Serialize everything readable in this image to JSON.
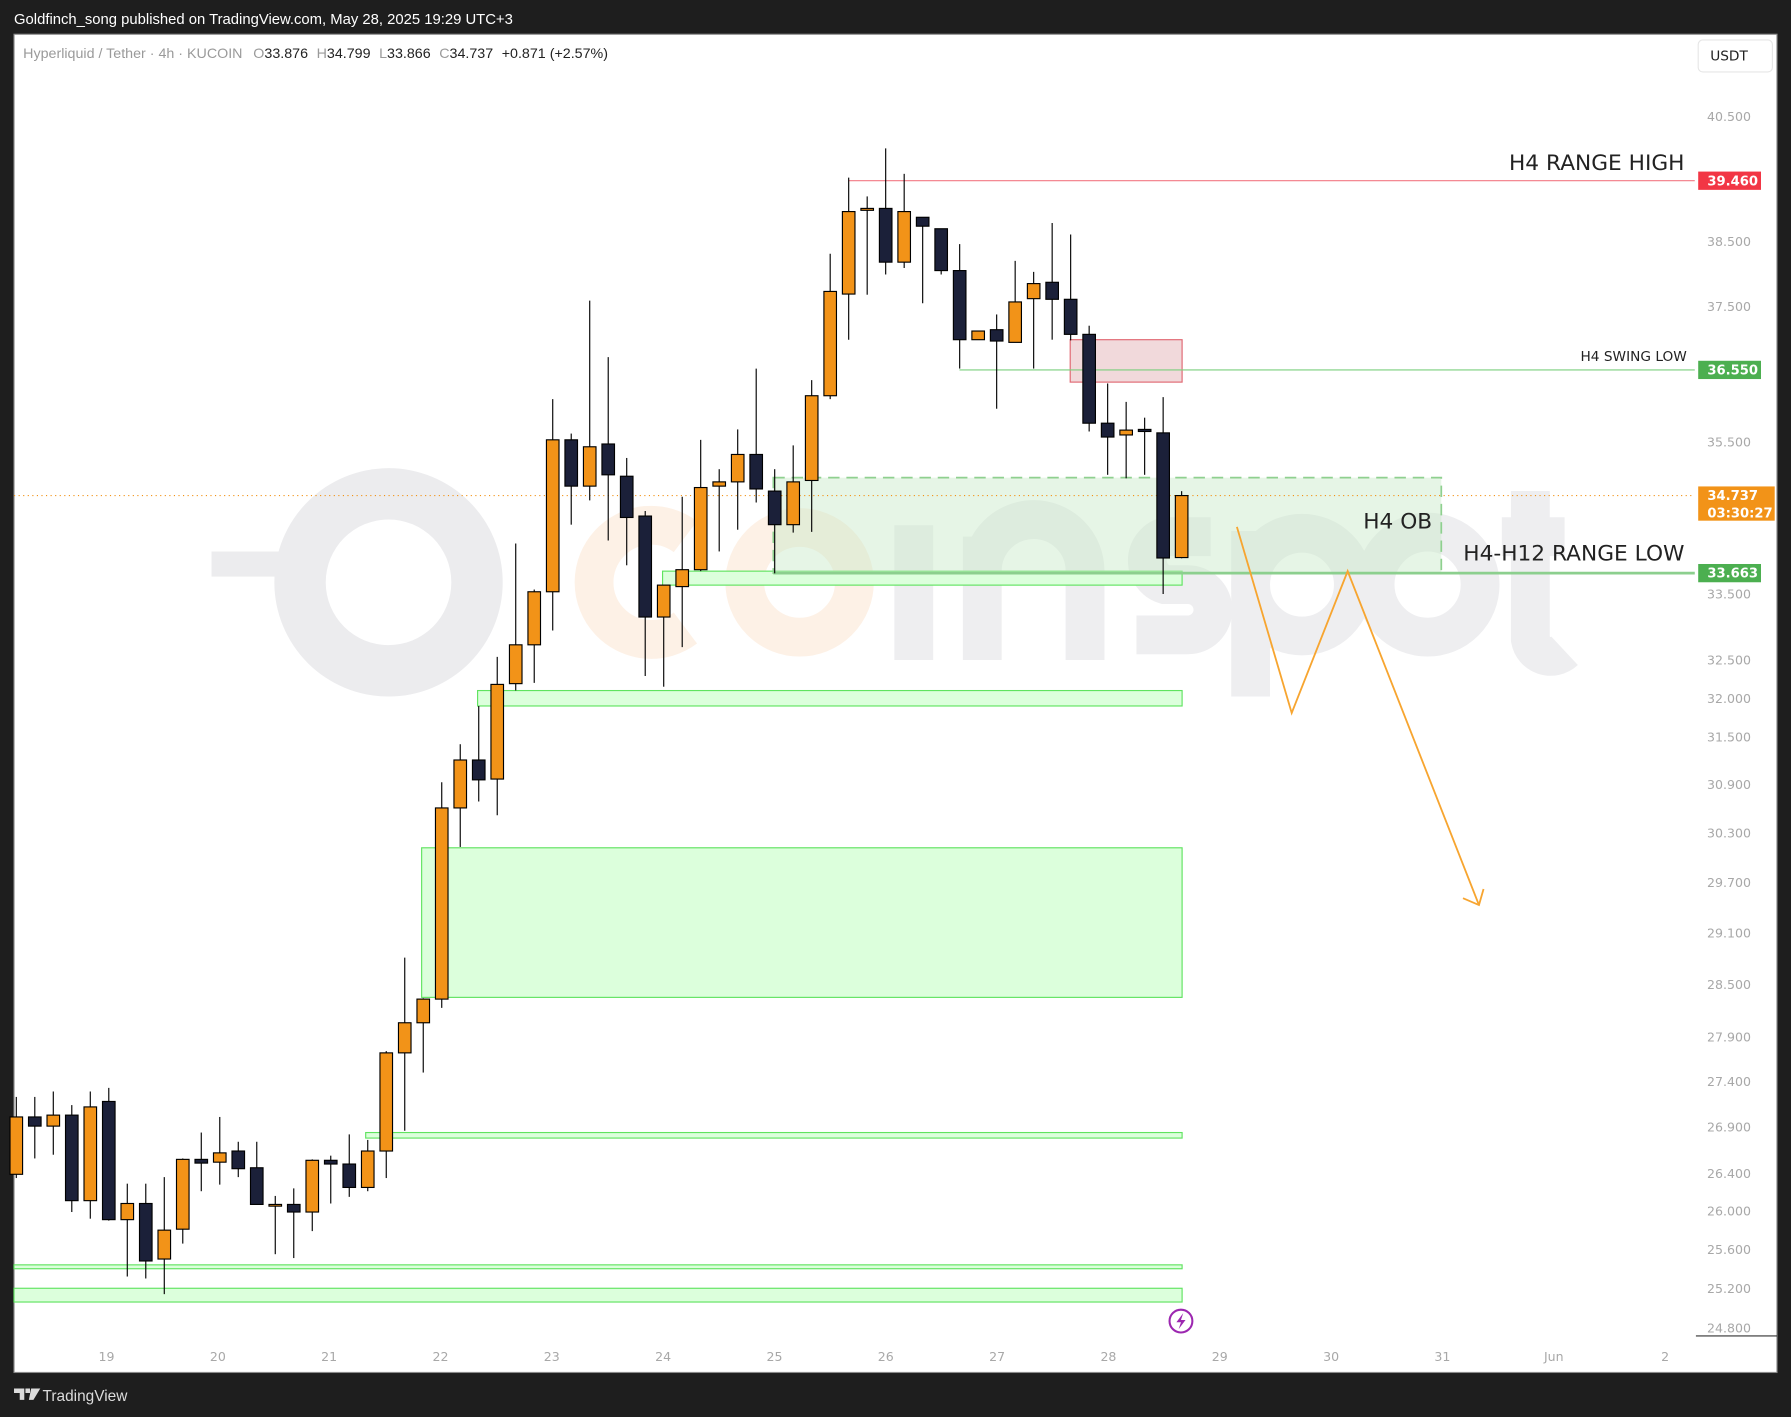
{
  "header": {
    "published": "Goldfinch_song published on TradingView.com, May 28, 2025 19:29 UTC+3"
  },
  "legend": {
    "symbol": "Hyperliquid / Tether · 4h · KUCOIN",
    "o_label": "O",
    "o": "33.876",
    "h_label": "H",
    "h": "34.799",
    "l_label": "L",
    "l": "33.866",
    "c_label": "C",
    "c": "34.737",
    "change": "+0.871 (+2.57%)"
  },
  "currency_button": "USDT",
  "colors": {
    "bull": "#f29318",
    "bear": "#1b2039",
    "zone_fill": "#dcffdc",
    "zone_stroke": "#5fe35f",
    "range_high": "#f23645",
    "level_green": "#4caf50",
    "projection": "#f7a530",
    "last_price": "#f29318"
  },
  "price_axis": {
    "scale": "log",
    "ticks": [
      "40.500",
      "38.500",
      "37.500",
      "35.500",
      "33.500",
      "32.500",
      "32.000",
      "31.500",
      "30.900",
      "30.300",
      "29.700",
      "29.100",
      "28.500",
      "27.900",
      "27.400",
      "26.900",
      "26.400",
      "26.000",
      "25.600",
      "25.200",
      "24.800"
    ]
  },
  "time_axis": {
    "ticks": [
      "19",
      "20",
      "21",
      "22",
      "23",
      "24",
      "25",
      "26",
      "27",
      "28",
      "29",
      "30",
      "31",
      "Jun",
      "2"
    ]
  },
  "levels": {
    "range_high": {
      "label": "H4 RANGE HIGH",
      "price": 39.46,
      "badge": "39.460"
    },
    "swing_low": {
      "label": "H4 SWING LOW",
      "price": 36.55,
      "badge": "36.550"
    },
    "range_low": {
      "label": "H4-H12 RANGE LOW",
      "price": 33.663,
      "badge": "33.663"
    },
    "last_price": {
      "price": 34.737,
      "badge": "34.737",
      "countdown": "03:30:27"
    }
  },
  "order_block": {
    "label": "H4 OB",
    "top": 34.99,
    "bottom": 33.663
  },
  "bearish_block": {
    "top": 37.0,
    "bottom": 36.37
  },
  "demand_zones": [
    {
      "top": 33.69,
      "bottom": 33.5
    },
    {
      "top": 32.1,
      "bottom": 31.9
    },
    {
      "top": 30.12,
      "bottom": 28.35
    },
    {
      "top": 26.84,
      "bottom": 26.78
    },
    {
      "top": 25.44,
      "bottom": 25.4
    },
    {
      "top": 25.2,
      "bottom": 25.06
    }
  ],
  "projection_path": [
    34.3,
    31.81,
    33.69,
    29.43
  ],
  "chart_data": {
    "type": "candlestick",
    "interval": "4h",
    "ohlc": [
      [
        26.39,
        27.23,
        26.35,
        27.01
      ],
      [
        27.01,
        27.23,
        26.56,
        26.91
      ],
      [
        26.91,
        27.29,
        26.6,
        27.03
      ],
      [
        27.03,
        27.14,
        25.99,
        26.11
      ],
      [
        26.11,
        27.29,
        25.92,
        27.12
      ],
      [
        27.18,
        27.33,
        25.9,
        25.91
      ],
      [
        25.91,
        26.29,
        25.32,
        26.08
      ],
      [
        26.08,
        26.29,
        25.3,
        25.48
      ],
      [
        25.5,
        26.36,
        25.14,
        25.8
      ],
      [
        25.81,
        26.56,
        25.66,
        26.55
      ],
      [
        26.55,
        26.84,
        26.21,
        26.51
      ],
      [
        26.52,
        27.01,
        26.28,
        26.62
      ],
      [
        26.64,
        26.74,
        26.36,
        26.45
      ],
      [
        26.46,
        26.74,
        26.07,
        26.07
      ],
      [
        26.07,
        26.16,
        25.55,
        26.07
      ],
      [
        26.07,
        26.24,
        25.51,
        25.99
      ],
      [
        25.99,
        26.55,
        25.79,
        26.54
      ],
      [
        26.54,
        26.59,
        26.08,
        26.5
      ],
      [
        26.5,
        26.82,
        26.15,
        26.25
      ],
      [
        26.25,
        26.76,
        26.21,
        26.64
      ],
      [
        26.64,
        27.74,
        26.35,
        27.72
      ],
      [
        27.72,
        28.81,
        26.86,
        28.06
      ],
      [
        28.06,
        28.34,
        27.5,
        28.33
      ],
      [
        28.33,
        30.93,
        28.23,
        30.61
      ],
      [
        30.61,
        31.41,
        30.13,
        31.21
      ],
      [
        31.21,
        31.9,
        30.69,
        30.96
      ],
      [
        30.97,
        32.54,
        30.52,
        32.18
      ],
      [
        32.19,
        34.07,
        32.1,
        32.7
      ],
      [
        32.7,
        33.44,
        32.2,
        33.41
      ],
      [
        33.41,
        36.12,
        32.89,
        35.53
      ],
      [
        35.53,
        35.62,
        34.33,
        34.87
      ],
      [
        34.87,
        37.59,
        34.67,
        35.43
      ],
      [
        35.47,
        36.74,
        34.11,
        35.03
      ],
      [
        35.01,
        35.27,
        33.77,
        34.43
      ],
      [
        34.45,
        34.52,
        32.29,
        33.07
      ],
      [
        33.07,
        33.5,
        32.15,
        33.5
      ],
      [
        33.48,
        34.72,
        32.67,
        33.71
      ],
      [
        33.71,
        35.53,
        33.69,
        34.85
      ],
      [
        34.87,
        35.11,
        33.96,
        34.93
      ],
      [
        34.93,
        35.68,
        34.26,
        35.32
      ],
      [
        35.32,
        36.57,
        34.64,
        34.83
      ],
      [
        34.8,
        35.11,
        33.66,
        34.33
      ],
      [
        34.33,
        35.45,
        34.22,
        34.93
      ],
      [
        34.95,
        36.4,
        34.23,
        36.17
      ],
      [
        36.17,
        38.31,
        36.12,
        37.73
      ],
      [
        37.69,
        39.51,
        37.0,
        38.97
      ],
      [
        38.99,
        39.21,
        37.68,
        39.02
      ],
      [
        39.02,
        39.98,
        37.99,
        38.18
      ],
      [
        38.18,
        39.57,
        38.09,
        38.97
      ],
      [
        38.88,
        38.88,
        37.55,
        38.74
      ],
      [
        38.7,
        38.7,
        37.99,
        38.05
      ],
      [
        38.05,
        38.46,
        36.57,
        37.0
      ],
      [
        37.0,
        37.13,
        37.0,
        37.13
      ],
      [
        37.15,
        37.38,
        35.98,
        36.98
      ],
      [
        36.96,
        38.2,
        36.96,
        37.57
      ],
      [
        37.62,
        38.03,
        36.57,
        37.85
      ],
      [
        37.87,
        38.79,
        37.0,
        37.61
      ],
      [
        37.61,
        38.61,
        36.99,
        37.08
      ],
      [
        37.08,
        37.21,
        35.65,
        35.77
      ],
      [
        35.77,
        36.35,
        35.03,
        35.57
      ],
      [
        35.6,
        36.08,
        34.98,
        35.67
      ],
      [
        35.68,
        35.85,
        35.03,
        35.65
      ],
      [
        35.63,
        36.15,
        33.38,
        33.87
      ],
      [
        33.876,
        34.799,
        33.866,
        34.737
      ]
    ]
  },
  "watermark": {
    "text": "coinspot"
  },
  "footer": {
    "brand": "TradingView"
  }
}
